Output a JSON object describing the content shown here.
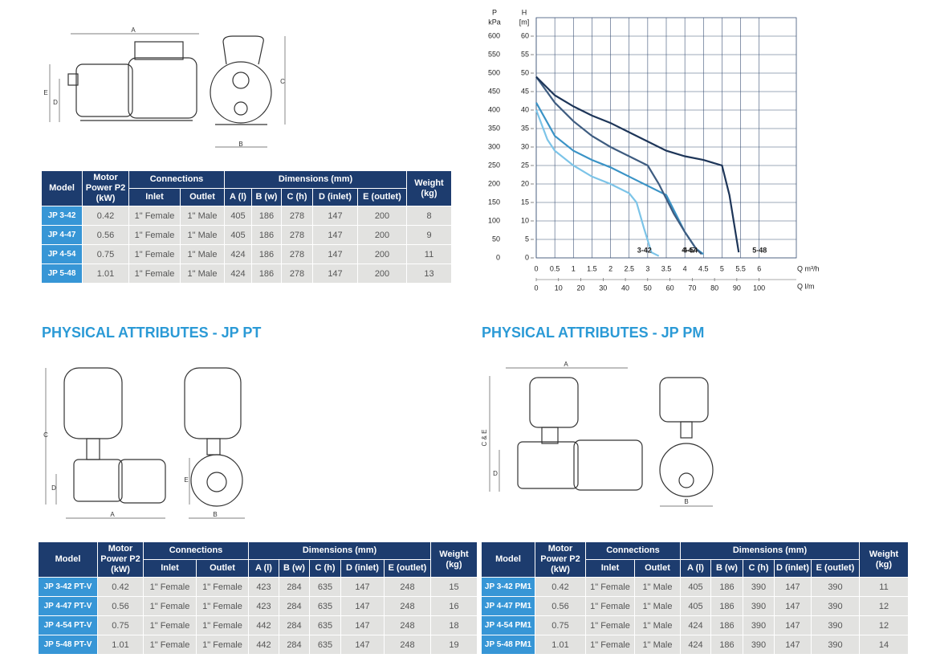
{
  "drawings": [
    {
      "labels": [
        "A",
        "E",
        "D",
        "C",
        "B"
      ]
    },
    {
      "labels": [
        "C",
        "D",
        "A",
        "E",
        "B"
      ]
    },
    {
      "labels": [
        "A",
        "C & E",
        "D",
        "B"
      ]
    }
  ],
  "headings": [
    "PHYSICAL ATTRIBUTES - JP PT",
    "PHYSICAL ATTRIBUTES - JP PM"
  ],
  "tables": [
    {
      "header": {
        "model": "Model",
        "power": "Motor Power P2 (kW)",
        "connections": "Connections",
        "inlet": "Inlet",
        "outlet": "Outlet",
        "dimensions": "Dimensions (mm)",
        "dims": [
          "A (l)",
          "B (w)",
          "C (h)",
          "D (inlet)",
          "E (outlet)"
        ],
        "weight": "Weight (kg)"
      },
      "rows": [
        [
          "JP 3-42",
          "0.42",
          "1\" Female",
          "1\" Male",
          "405",
          "186",
          "278",
          "147",
          "200",
          "8"
        ],
        [
          "JP 4-47",
          "0.56",
          "1\" Female",
          "1\" Male",
          "405",
          "186",
          "278",
          "147",
          "200",
          "9"
        ],
        [
          "JP 4-54",
          "0.75",
          "1\" Female",
          "1\" Male",
          "424",
          "186",
          "278",
          "147",
          "200",
          "11"
        ],
        [
          "JP 5-48",
          "1.01",
          "1\" Female",
          "1\" Male",
          "424",
          "186",
          "278",
          "147",
          "200",
          "13"
        ]
      ]
    },
    {
      "header": {
        "model": "Model",
        "power": "Motor Power P2 (kW)",
        "connections": "Connections",
        "inlet": "Inlet",
        "outlet": "Outlet",
        "dimensions": "Dimensions (mm)",
        "dims": [
          "A (l)",
          "B (w)",
          "C (h)",
          "D (inlet)",
          "E (outlet)"
        ],
        "weight": "Weight (kg)"
      },
      "rows": [
        [
          "JP 3-42 PT-V",
          "0.42",
          "1\" Female",
          "1\" Female",
          "423",
          "284",
          "635",
          "147",
          "248",
          "15"
        ],
        [
          "JP 4-47 PT-V",
          "0.56",
          "1\" Female",
          "1\" Female",
          "423",
          "284",
          "635",
          "147",
          "248",
          "16"
        ],
        [
          "JP 4-54 PT-V",
          "0.75",
          "1\" Female",
          "1\" Female",
          "442",
          "284",
          "635",
          "147",
          "248",
          "18"
        ],
        [
          "JP 5-48 PT-V",
          "1.01",
          "1\" Female",
          "1\" Female",
          "442",
          "284",
          "635",
          "147",
          "248",
          "19"
        ]
      ]
    },
    {
      "header": {
        "model": "Model",
        "power": "Motor Power P2 (kW)",
        "connections": "Connections",
        "inlet": "Inlet",
        "outlet": "Outlet",
        "dimensions": "Dimensions (mm)",
        "dims": [
          "A (l)",
          "B (w)",
          "C (h)",
          "D (inlet)",
          "E (outlet)"
        ],
        "weight": "Weight (kg)"
      },
      "rows": [
        [
          "JP 3-42 PM1",
          "0.42",
          "1\" Female",
          "1\" Male",
          "405",
          "186",
          "390",
          "147",
          "390",
          "11"
        ],
        [
          "JP 4-47 PM1",
          "0.56",
          "1\" Female",
          "1\" Male",
          "405",
          "186",
          "390",
          "147",
          "390",
          "12"
        ],
        [
          "JP 4-54 PM1",
          "0.75",
          "1\" Female",
          "1\" Male",
          "424",
          "186",
          "390",
          "147",
          "390",
          "12"
        ],
        [
          "JP 5-48 PM1",
          "1.01",
          "1\" Female",
          "1\" Male",
          "424",
          "186",
          "390",
          "147",
          "390",
          "14"
        ]
      ]
    }
  ],
  "chart_data": {
    "type": "line",
    "y2_label": "P",
    "y2_unit": "kPa",
    "y_label": "H",
    "y_unit": "[m]",
    "x_label": "Q m³/h",
    "x2_label": "Q l/m",
    "xlim": [
      0,
      7
    ],
    "xticks": [
      0,
      0.5,
      1,
      1.5,
      2,
      2.5,
      3,
      3.5,
      4,
      4.5,
      5,
      5.5,
      6
    ],
    "x2lim": [
      0,
      116.7
    ],
    "x2ticks": [
      0,
      10,
      20,
      30,
      40,
      50,
      60,
      70,
      80,
      90,
      100
    ],
    "ylim": [
      0,
      65
    ],
    "yticks": [
      0,
      5,
      10,
      15,
      20,
      25,
      30,
      35,
      40,
      45,
      50,
      55,
      60
    ],
    "y2lim": [
      0,
      650
    ],
    "y2ticks": [
      0,
      50,
      100,
      150,
      200,
      250,
      300,
      350,
      400,
      450,
      500,
      550,
      600
    ],
    "grid": true,
    "series": [
      {
        "name": "3-42",
        "color": "#7cc4e8",
        "x": [
          0,
          0.3,
          0.5,
          1,
          1.5,
          2,
          2.5,
          2.7,
          2.9,
          3.1,
          3.3
        ],
        "values": [
          40,
          32,
          29,
          25,
          22,
          20,
          17.5,
          15,
          8,
          1.5,
          0.5
        ]
      },
      {
        "name": "4-47",
        "color": "#3a93c6",
        "x": [
          0,
          0.5,
          1,
          1.5,
          2,
          2.5,
          3,
          3.5,
          4,
          4.3,
          4.5
        ],
        "values": [
          42,
          33,
          29,
          26.5,
          24.5,
          22,
          19.5,
          17,
          7,
          2.5,
          1
        ]
      },
      {
        "name": "4-54",
        "color": "#3e5c80",
        "x": [
          0,
          0.5,
          1,
          1.5,
          2,
          2.5,
          3,
          3.3,
          3.7,
          4,
          4.3,
          4.45
        ],
        "values": [
          49,
          42,
          37,
          33,
          30,
          27.5,
          25,
          20,
          12,
          7,
          2.5,
          1
        ]
      },
      {
        "name": "5-48",
        "color": "#1d3558",
        "x": [
          0,
          0.5,
          1,
          1.5,
          2,
          2.5,
          3,
          3.5,
          4,
          4.5,
          5,
          5.2,
          5.45
        ],
        "values": [
          49,
          44,
          41,
          38.5,
          36.5,
          34,
          31.5,
          29,
          27.5,
          26.5,
          25,
          17,
          1.5
        ]
      }
    ]
  }
}
